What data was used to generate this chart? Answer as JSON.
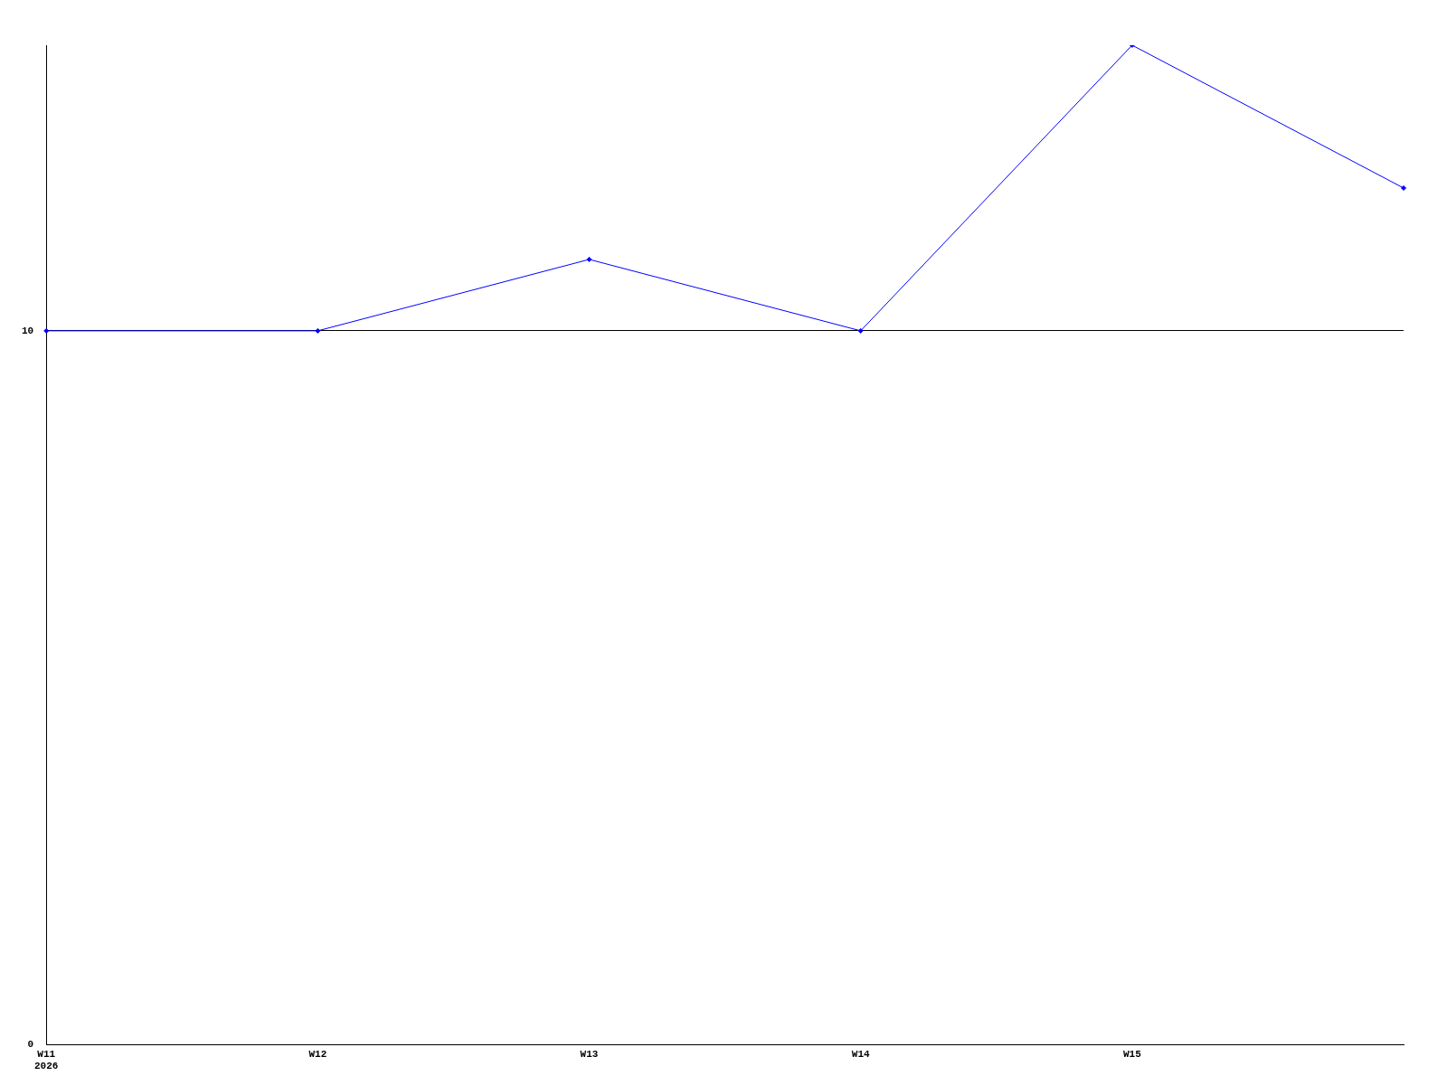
{
  "chart_data": {
    "type": "line",
    "categories": [
      "W11\n2026",
      "W12",
      "W13",
      "W14",
      "W15",
      null
    ],
    "series": [
      {
        "color": "#0000ff",
        "values": [
          10,
          10,
          11,
          10,
          14,
          12
        ]
      }
    ],
    "ylim": [
      0,
      14
    ],
    "yticks": [
      0,
      10
    ],
    "grid": "y",
    "legend": false,
    "marker": "diamond",
    "line_style": "solid"
  }
}
